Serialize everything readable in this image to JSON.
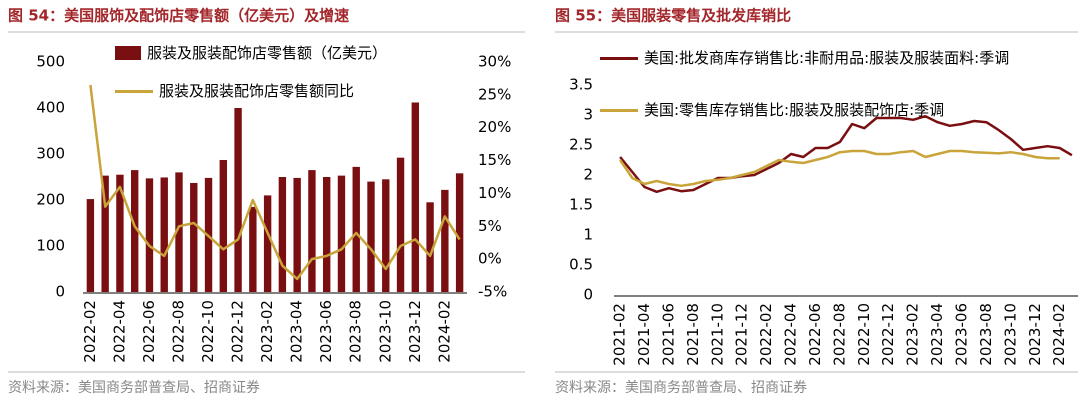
{
  "chart_data": [
    {
      "type": "bar_line",
      "title": "图 54：美国服饰及配饰店零售额（亿美元）及增速",
      "source": "资料来源：美国商务部普查局、招商证券",
      "categories": [
        "2022-02",
        null,
        "2022-04",
        null,
        "2022-06",
        null,
        "2022-08",
        null,
        "2022-10",
        null,
        "2022-12",
        null,
        "2023-02",
        null,
        "2023-04",
        null,
        "2023-06",
        null,
        "2023-08",
        null,
        "2023-10",
        null,
        "2023-12",
        null,
        "2024-02",
        null
      ],
      "series": [
        {
          "name": "服装及服装配饰店零售额（亿美元）",
          "color": "#7a0f12",
          "kind": "bar",
          "values": [
            202,
            253,
            255,
            265,
            247,
            249,
            260,
            237,
            248,
            287,
            400,
            185,
            210,
            250,
            248,
            265,
            250,
            253,
            272,
            240,
            245,
            292,
            412,
            195,
            222,
            258
          ]
        },
        {
          "name": "服装及服装配饰店零售额同比",
          "color": "#c9a43a",
          "kind": "line",
          "axis": "y2",
          "values": [
            26.5,
            8,
            11,
            5,
            2,
            0.5,
            5,
            5.5,
            3.5,
            1.5,
            3,
            9,
            4,
            -1,
            -3,
            0,
            0.5,
            1.5,
            4,
            1.5,
            -1.5,
            2,
            3,
            0.5,
            6.5,
            3
          ]
        }
      ],
      "ylim": [
        0,
        500
      ],
      "yticks": [
        0,
        100,
        200,
        300,
        400,
        500
      ],
      "y2lim": [
        -5,
        30
      ],
      "y2ticks": [
        {
          "value": -5,
          "label": "-5%"
        },
        {
          "value": 0,
          "label": "0%"
        },
        {
          "value": 5,
          "label": "5%"
        },
        {
          "value": 10,
          "label": "10%"
        },
        {
          "value": 15,
          "label": "15%"
        },
        {
          "value": 20,
          "label": "20%"
        },
        {
          "value": 25,
          "label": "25%"
        },
        {
          "value": 30,
          "label": "30%"
        }
      ],
      "grid": false
    },
    {
      "type": "line",
      "title": "图 55：美国服装零售及批发库销比",
      "source": "资料来源：美国商务部普查局、招商证券",
      "categories": [
        "2021-02",
        null,
        "2021-04",
        null,
        "2021-06",
        null,
        "2021-08",
        null,
        "2021-10",
        null,
        "2021-12",
        null,
        "2022-02",
        null,
        "2022-04",
        null,
        "2022-06",
        null,
        "2022-08",
        null,
        "2022-10",
        null,
        "2022-12",
        null,
        "2023-02",
        null,
        "2023-04",
        null,
        "2023-06",
        null,
        "2023-08",
        null,
        "2023-10",
        null,
        "2023-12",
        null,
        "2024-02",
        null
      ],
      "series": [
        {
          "name": "美国:批发商库存销售比:非耐用品:服装及服装面料:季调",
          "color": "#7a0f12",
          "values": [
            2.3,
            2.05,
            1.8,
            1.72,
            1.78,
            1.73,
            1.75,
            1.85,
            1.95,
            1.95,
            1.98,
            2.0,
            2.1,
            2.2,
            2.35,
            2.3,
            2.45,
            2.45,
            2.55,
            2.85,
            2.78,
            2.95,
            2.95,
            2.95,
            2.92,
            2.98,
            2.88,
            2.82,
            2.85,
            2.9,
            2.88,
            2.75,
            2.6,
            2.42,
            2.45,
            2.48,
            2.45,
            2.33
          ]
        },
        {
          "name": "美国:零售库存销售比:服装及服装配饰店:季调",
          "color": "#c9a43a",
          "values": [
            2.25,
            1.95,
            1.85,
            1.9,
            1.85,
            1.82,
            1.85,
            1.9,
            1.92,
            1.95,
            2.0,
            2.05,
            2.15,
            2.25,
            2.22,
            2.2,
            2.25,
            2.3,
            2.38,
            2.4,
            2.4,
            2.35,
            2.35,
            2.38,
            2.4,
            2.3,
            2.35,
            2.4,
            2.4,
            2.38,
            2.37,
            2.36,
            2.38,
            2.35,
            2.3,
            2.28,
            2.28,
            null
          ]
        }
      ],
      "ylim": [
        0,
        3.5
      ],
      "yticks": [
        0,
        0.5,
        1,
        1.5,
        2,
        2.5,
        3,
        3.5
      ],
      "grid": false
    }
  ]
}
